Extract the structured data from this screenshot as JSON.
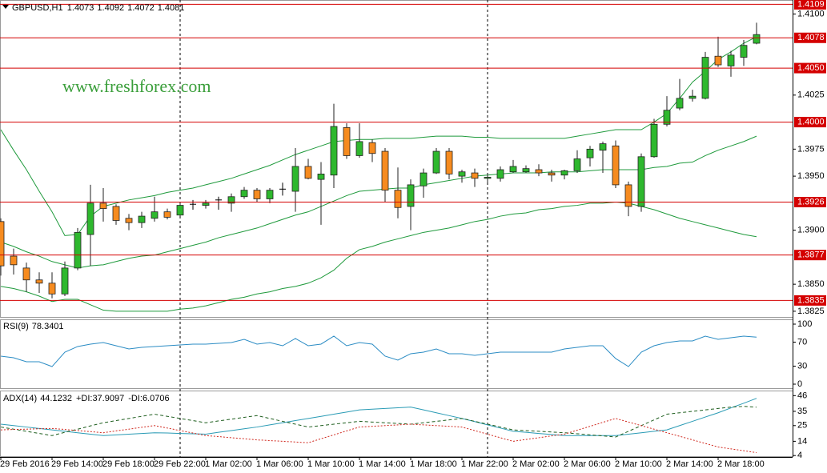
{
  "chart_data": [
    {
      "type": "candlestick",
      "symbol": "GBPUSD,H1",
      "watermark": "www.freshforex.com",
      "categories": [
        "29 Feb 2016",
        null,
        null,
        null,
        "29 Feb 14:00",
        null,
        null,
        null,
        "29 Feb 18:00",
        null,
        null,
        null,
        "29 Feb 22:00",
        null,
        null,
        null,
        "1 Mar 02:00",
        null,
        null,
        null,
        "1 Mar 06:00",
        null,
        null,
        null,
        "1 Mar 10:00",
        null,
        null,
        null,
        "1 Mar 14:00",
        null,
        null,
        null,
        "1 Mar 18:00",
        null,
        null,
        null,
        "1 Mar 22:00",
        null,
        null,
        null,
        "2 Mar 02:00",
        null,
        null,
        null,
        "2 Mar 06:00",
        null,
        null,
        null,
        "2 Mar 10:00",
        null,
        null,
        null,
        "2 Mar 14:00",
        null,
        null,
        null,
        "2 Mar 18:00",
        null,
        null,
        null
      ],
      "open": [
        1.3908,
        1.3876,
        1.3865,
        1.3854,
        1.3851,
        1.3841,
        1.3865,
        1.3896,
        1.3925,
        1.3922,
        1.3911,
        1.3907,
        1.3911,
        1.3917,
        1.3914,
        1.3924,
        1.3923,
        1.3928,
        1.3925,
        1.3931,
        1.3937,
        1.3929,
        1.3938,
        1.3936,
        1.3959,
        1.3947,
        1.3951,
        1.3995,
        1.3969,
        1.3981,
        1.3973,
        1.3937,
        1.3922,
        1.3941,
        1.3953,
        1.3973,
        1.395,
        1.3953,
        1.3948,
        1.3948,
        1.3954,
        1.3954,
        1.3956,
        1.3953,
        1.3951,
        1.3955,
        1.3967,
        1.3974,
        1.3978,
        1.3942,
        1.3922,
        1.3968,
        1.3998,
        1.4013,
        1.4022,
        1.4022,
        1.4061,
        1.4052,
        1.406,
        1.4073
      ],
      "high": [
        1.3911,
        1.3883,
        1.387,
        1.3861,
        1.3861,
        1.3871,
        1.3902,
        1.3942,
        1.3939,
        1.3924,
        1.3915,
        1.3917,
        1.3931,
        1.392,
        1.3925,
        1.3928,
        1.3928,
        1.3931,
        1.3934,
        1.394,
        1.3939,
        1.3939,
        1.3944,
        1.3976,
        1.3966,
        1.3963,
        1.4017,
        1.3999,
        1.3999,
        1.3984,
        1.3976,
        1.3958,
        1.3947,
        1.3957,
        1.3976,
        1.3976,
        1.3956,
        1.3957,
        1.3952,
        1.3959,
        1.3965,
        1.396,
        1.3961,
        1.3956,
        1.3956,
        1.3974,
        1.3978,
        1.3982,
        1.3983,
        1.3945,
        1.3971,
        1.4003,
        1.4024,
        1.404,
        1.403,
        1.4065,
        1.4079,
        1.4066,
        1.4076,
        1.4092
      ],
      "low": [
        1.3858,
        1.3859,
        1.3843,
        1.3842,
        1.3837,
        1.3839,
        1.3863,
        1.3867,
        1.3908,
        1.3905,
        1.39,
        1.3902,
        1.3908,
        1.391,
        1.3913,
        1.3919,
        1.392,
        1.3919,
        1.3917,
        1.3929,
        1.3926,
        1.3925,
        1.3932,
        1.3917,
        1.3947,
        1.3905,
        1.3939,
        1.3966,
        1.3967,
        1.3963,
        1.3926,
        1.3911,
        1.39,
        1.393,
        1.3952,
        1.3947,
        1.3944,
        1.394,
        1.3944,
        1.3945,
        1.3953,
        1.3953,
        1.395,
        1.3945,
        1.3947,
        1.3953,
        1.3959,
        1.3953,
        1.3939,
        1.3913,
        1.3917,
        1.3967,
        1.3996,
        1.4011,
        1.4019,
        1.4021,
        1.4051,
        1.4042,
        1.4052,
        1.4072
      ],
      "close": [
        1.3867,
        1.3868,
        1.3854,
        1.3851,
        1.3841,
        1.3865,
        1.3898,
        1.3925,
        1.392,
        1.3909,
        1.3907,
        1.3913,
        1.3917,
        1.3912,
        1.3923,
        1.3924,
        1.3925,
        1.3928,
        1.3931,
        1.3937,
        1.3929,
        1.3937,
        1.3938,
        1.3959,
        1.3948,
        1.3952,
        1.3996,
        1.3969,
        1.3982,
        1.3971,
        1.3937,
        1.3921,
        1.3942,
        1.3953,
        1.3973,
        1.3952,
        1.3954,
        1.3948,
        1.3949,
        1.3956,
        1.3959,
        1.3957,
        1.3953,
        1.3951,
        1.3955,
        1.3966,
        1.3975,
        1.398,
        1.3942,
        1.3922,
        1.3968,
        1.3998,
        1.4011,
        1.4022,
        1.4024,
        1.406,
        1.4053,
        1.4062,
        1.4071,
        1.4081
      ],
      "up_color": "#2eb82e",
      "down_color": "#f68b1f",
      "doji_color": "#000000",
      "bands": {
        "color": "#1f9a3c",
        "upper": [
          1.3993,
          1.3974,
          1.3956,
          1.3936,
          1.3917,
          1.3895,
          1.3896,
          1.3913,
          1.3922,
          1.3925,
          1.3928,
          1.393,
          1.3932,
          1.3935,
          1.3937,
          1.3939,
          1.3942,
          1.3945,
          1.3948,
          1.3952,
          1.3956,
          1.396,
          1.3965,
          1.397,
          1.3974,
          1.3978,
          1.3982,
          1.3983,
          1.3984,
          1.3984,
          1.3985,
          1.3985,
          1.3985,
          1.3986,
          1.3987,
          1.3987,
          1.3987,
          1.3986,
          1.3986,
          1.3985,
          1.3985,
          1.3985,
          1.3985,
          1.3985,
          1.3985,
          1.3987,
          1.3989,
          1.3991,
          1.3993,
          1.3993,
          1.3993,
          1.4,
          1.4008,
          1.4022,
          1.4037,
          1.4047,
          1.4058,
          1.4065,
          1.4073,
          1.4079
        ],
        "middle": [
          1.3889,
          1.3885,
          1.388,
          1.3876,
          1.3871,
          1.3868,
          1.3865,
          1.3867,
          1.3868,
          1.3871,
          1.3874,
          1.3876,
          1.3877,
          1.388,
          1.3883,
          1.3886,
          1.3889,
          1.3893,
          1.3896,
          1.3899,
          1.3902,
          1.3906,
          1.391,
          1.3914,
          1.3917,
          1.3922,
          1.3927,
          1.3932,
          1.3936,
          1.3937,
          1.3938,
          1.3939,
          1.3939,
          1.3942,
          1.3944,
          1.3946,
          1.3948,
          1.395,
          1.3951,
          1.3952,
          1.3953,
          1.3953,
          1.3953,
          1.3954,
          1.3954,
          1.3954,
          1.3955,
          1.3956,
          1.3956,
          1.3956,
          1.3956,
          1.3958,
          1.3959,
          1.3962,
          1.3963,
          1.3969,
          1.3974,
          1.3978,
          1.3982,
          1.3987
        ],
        "lower": [
          1.3848,
          1.3846,
          1.3843,
          1.3839,
          1.3834,
          1.3836,
          1.3836,
          1.3831,
          1.3826,
          1.3825,
          1.3825,
          1.3825,
          1.3825,
          1.3825,
          1.3827,
          1.3828,
          1.383,
          1.3833,
          1.3836,
          1.3838,
          1.3841,
          1.3843,
          1.3846,
          1.3848,
          1.3851,
          1.3856,
          1.3863,
          1.3874,
          1.3882,
          1.3885,
          1.3889,
          1.3892,
          1.3895,
          1.3898,
          1.39,
          1.3902,
          1.3905,
          1.3908,
          1.391,
          1.3913,
          1.3915,
          1.3916,
          1.3919,
          1.392,
          1.3922,
          1.3923,
          1.3925,
          1.3925,
          1.3926,
          1.3925,
          1.3922,
          1.3919,
          1.3915,
          1.3911,
          1.3908,
          1.3905,
          1.3902,
          1.3899,
          1.3896,
          1.3894
        ]
      },
      "levels": {
        "color": "#d40000",
        "values": [
          1.4109,
          1.4078,
          {
            "value": 1.405,
            "label": "1.4050"
          },
          {
            "value": 1.4,
            "label": "1.4000"
          },
          1.3926,
          1.3877,
          1.3835
        ]
      },
      "ylim": [
        1.3819,
        1.4113
      ],
      "yticks": [
        {
          "value": 1.41,
          "label": "1.4100"
        },
        1.4025,
        1.3975,
        {
          "value": 1.395,
          "label": "1.3950"
        },
        {
          "value": 1.39,
          "label": "1.3900"
        },
        {
          "value": 1.385,
          "label": "1.3850"
        },
        1.3825
      ]
    },
    {
      "type": "line",
      "series": [
        {
          "name": "RSI(9)",
          "color": "#2b8cc4",
          "style": "solid",
          "values": [
            46.7,
            44,
            37.3,
            37.3,
            29.3,
            53.3,
            62.7,
            66.7,
            69.3,
            64,
            58.7,
            61.3,
            62.7,
            64,
            65.3,
            66.7,
            66.7,
            68,
            69.3,
            74.7,
            66.7,
            69.3,
            64,
            76,
            64,
            66.7,
            80,
            64,
            69.3,
            66.7,
            46.7,
            40,
            50.7,
            53.3,
            58.7,
            50.7,
            50.7,
            48,
            50.7,
            53.3,
            53.3,
            53.3,
            53.3,
            53.3,
            58.7,
            61.3,
            64,
            64,
            42.7,
            29.3,
            53.3,
            64,
            69.3,
            72,
            72,
            80,
            74.7,
            77.3,
            80,
            78.3401
          ]
        }
      ],
      "ylim": [
        -8,
        108
      ],
      "yticks": [
        100,
        70,
        30,
        0
      ]
    },
    {
      "type": "line",
      "series": [
        {
          "name": "ADX(14)",
          "color": "#2a9bb5",
          "style": "solid",
          "values": [
            26,
            25,
            24,
            23,
            22,
            21,
            20,
            19,
            18,
            18.5,
            19,
            19.5,
            20,
            19.8,
            19.5,
            19.3,
            19,
            20.3,
            21.5,
            22.8,
            24,
            25.5,
            27,
            28.5,
            30,
            31.5,
            33,
            34.5,
            36,
            36.5,
            37,
            37.5,
            38,
            36,
            34,
            32,
            30,
            27.8,
            25.5,
            23.3,
            21,
            20.3,
            19.5,
            18.8,
            18,
            18,
            18,
            18,
            18,
            19,
            20,
            21,
            22,
            25,
            28,
            31,
            34,
            37.4,
            40.7,
            44.1232
          ]
        },
        {
          "name": "+DI:",
          "color": "#1e5e1e",
          "style": "dashed",
          "values": [
            24,
            22.5,
            21,
            19.5,
            18,
            20.3,
            22.5,
            24.8,
            27,
            28.5,
            30,
            31.5,
            33,
            31.5,
            30,
            28.5,
            27,
            28.3,
            29.5,
            30.8,
            32,
            30,
            28,
            26,
            24,
            25,
            26,
            27,
            28,
            27.5,
            27,
            26.5,
            26,
            27,
            28,
            29,
            30,
            28,
            26,
            24,
            22,
            21.5,
            21,
            20.5,
            20,
            19.3,
            18.5,
            17.8,
            17,
            21,
            25,
            29,
            33,
            34,
            35,
            36,
            37,
            38,
            38.5,
            37.9097
          ]
        },
        {
          "name": "-DI:",
          "color": "#d0281e",
          "style": "dotted",
          "values": [
            22,
            22.3,
            22.5,
            22.8,
            23,
            22.3,
            21.5,
            20.8,
            20,
            21.3,
            22.5,
            23.8,
            25,
            23.3,
            21.5,
            19.8,
            18,
            17.3,
            16.5,
            15.8,
            15,
            14.5,
            14,
            13.5,
            13,
            15.8,
            18.5,
            21.3,
            24,
            24.5,
            25,
            25.5,
            26,
            25.5,
            25,
            24.5,
            24,
            21.5,
            19,
            16.5,
            14,
            15.3,
            16.5,
            17.8,
            19,
            21.8,
            24.5,
            27.3,
            30,
            27.5,
            25,
            22.5,
            20,
            17.5,
            15,
            12.5,
            10,
            8.7,
            7.4,
            6.0706
          ]
        }
      ],
      "ylim": [
        3,
        49
      ],
      "yticks": [
        46,
        35,
        25,
        14,
        4
      ]
    }
  ]
}
